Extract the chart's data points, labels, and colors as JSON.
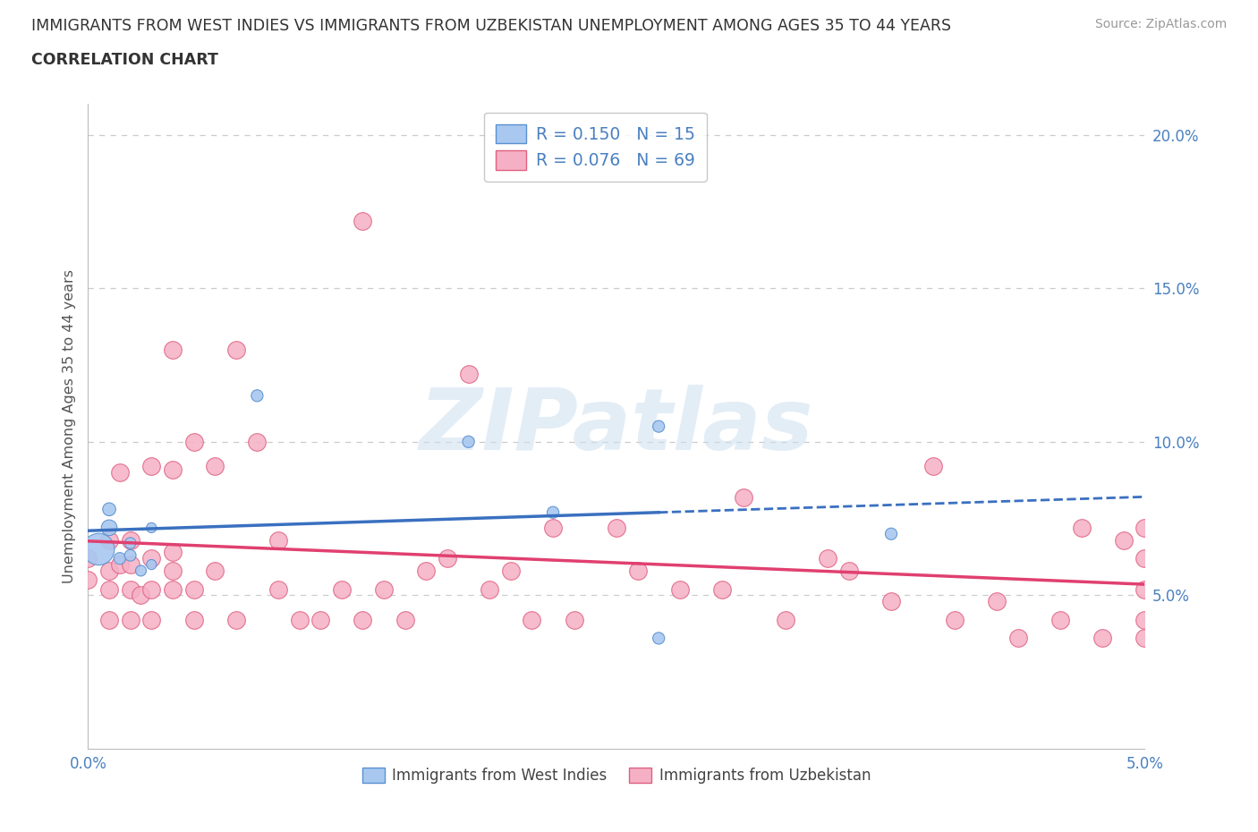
{
  "title_line1": "IMMIGRANTS FROM WEST INDIES VS IMMIGRANTS FROM UZBEKISTAN UNEMPLOYMENT AMONG AGES 35 TO 44 YEARS",
  "title_line2": "CORRELATION CHART",
  "source_text": "Source: ZipAtlas.com",
  "ylabel": "Unemployment Among Ages 35 to 44 years",
  "xmin": 0.0,
  "xmax": 0.05,
  "ymin": 0.0,
  "ymax": 0.21,
  "ytick_positions": [
    0.05,
    0.1,
    0.15,
    0.2
  ],
  "ytick_labels": [
    "5.0%",
    "10.0%",
    "15.0%",
    "20.0%"
  ],
  "west_indies_R": 0.15,
  "west_indies_N": 15,
  "uzbekistan_R": 0.076,
  "uzbekistan_N": 69,
  "west_indies_color": "#a8c8f0",
  "uzbekistan_color": "#f5b0c5",
  "west_indies_edge": "#5a90d0",
  "uzbekistan_edge": "#e06080",
  "west_indies_line": "#3a70c0",
  "uzbekistan_line": "#e04070",
  "legend_label_west": "Immigrants from West Indies",
  "legend_label_uzb": "Immigrants from Uzbekistan",
  "watermark": "ZIPatlas",
  "watermark_color": "#cddff0",
  "grid_color": "#cccccc",
  "bg_color": "#ffffff",
  "title_color": "#333333",
  "axis_label_color": "#4a80c0",
  "west_indies_x": [
    0.0005,
    0.001,
    0.001,
    0.0015,
    0.002,
    0.002,
    0.0025,
    0.003,
    0.003,
    0.008,
    0.018,
    0.022,
    0.027,
    0.027,
    0.038
  ],
  "west_indies_y": [
    0.065,
    0.072,
    0.078,
    0.062,
    0.063,
    0.067,
    0.058,
    0.06,
    0.072,
    0.115,
    0.1,
    0.077,
    0.105,
    0.036,
    0.07
  ],
  "west_indies_size": [
    650,
    160,
    110,
    90,
    85,
    80,
    75,
    65,
    65,
    90,
    90,
    90,
    90,
    90,
    90
  ],
  "uzbekistan_x": [
    0.0,
    0.0,
    0.001,
    0.001,
    0.001,
    0.001,
    0.0015,
    0.0015,
    0.002,
    0.002,
    0.002,
    0.002,
    0.0025,
    0.003,
    0.003,
    0.003,
    0.003,
    0.004,
    0.004,
    0.004,
    0.004,
    0.004,
    0.005,
    0.005,
    0.005,
    0.006,
    0.006,
    0.007,
    0.007,
    0.008,
    0.009,
    0.009,
    0.01,
    0.011,
    0.012,
    0.013,
    0.013,
    0.014,
    0.015,
    0.016,
    0.017,
    0.018,
    0.019,
    0.02,
    0.021,
    0.022,
    0.023,
    0.025,
    0.026,
    0.028,
    0.03,
    0.031,
    0.033,
    0.035,
    0.036,
    0.038,
    0.04,
    0.041,
    0.043,
    0.044,
    0.046,
    0.047,
    0.048,
    0.049,
    0.05,
    0.05,
    0.05,
    0.05,
    0.05
  ],
  "uzbekistan_y": [
    0.055,
    0.062,
    0.042,
    0.052,
    0.058,
    0.068,
    0.06,
    0.09,
    0.042,
    0.052,
    0.06,
    0.068,
    0.05,
    0.042,
    0.052,
    0.062,
    0.092,
    0.052,
    0.058,
    0.064,
    0.091,
    0.13,
    0.042,
    0.052,
    0.1,
    0.058,
    0.092,
    0.042,
    0.13,
    0.1,
    0.052,
    0.068,
    0.042,
    0.042,
    0.052,
    0.042,
    0.172,
    0.052,
    0.042,
    0.058,
    0.062,
    0.122,
    0.052,
    0.058,
    0.042,
    0.072,
    0.042,
    0.072,
    0.058,
    0.052,
    0.052,
    0.082,
    0.042,
    0.062,
    0.058,
    0.048,
    0.092,
    0.042,
    0.048,
    0.036,
    0.042,
    0.072,
    0.036,
    0.068,
    0.042,
    0.052,
    0.062,
    0.072,
    0.036
  ]
}
